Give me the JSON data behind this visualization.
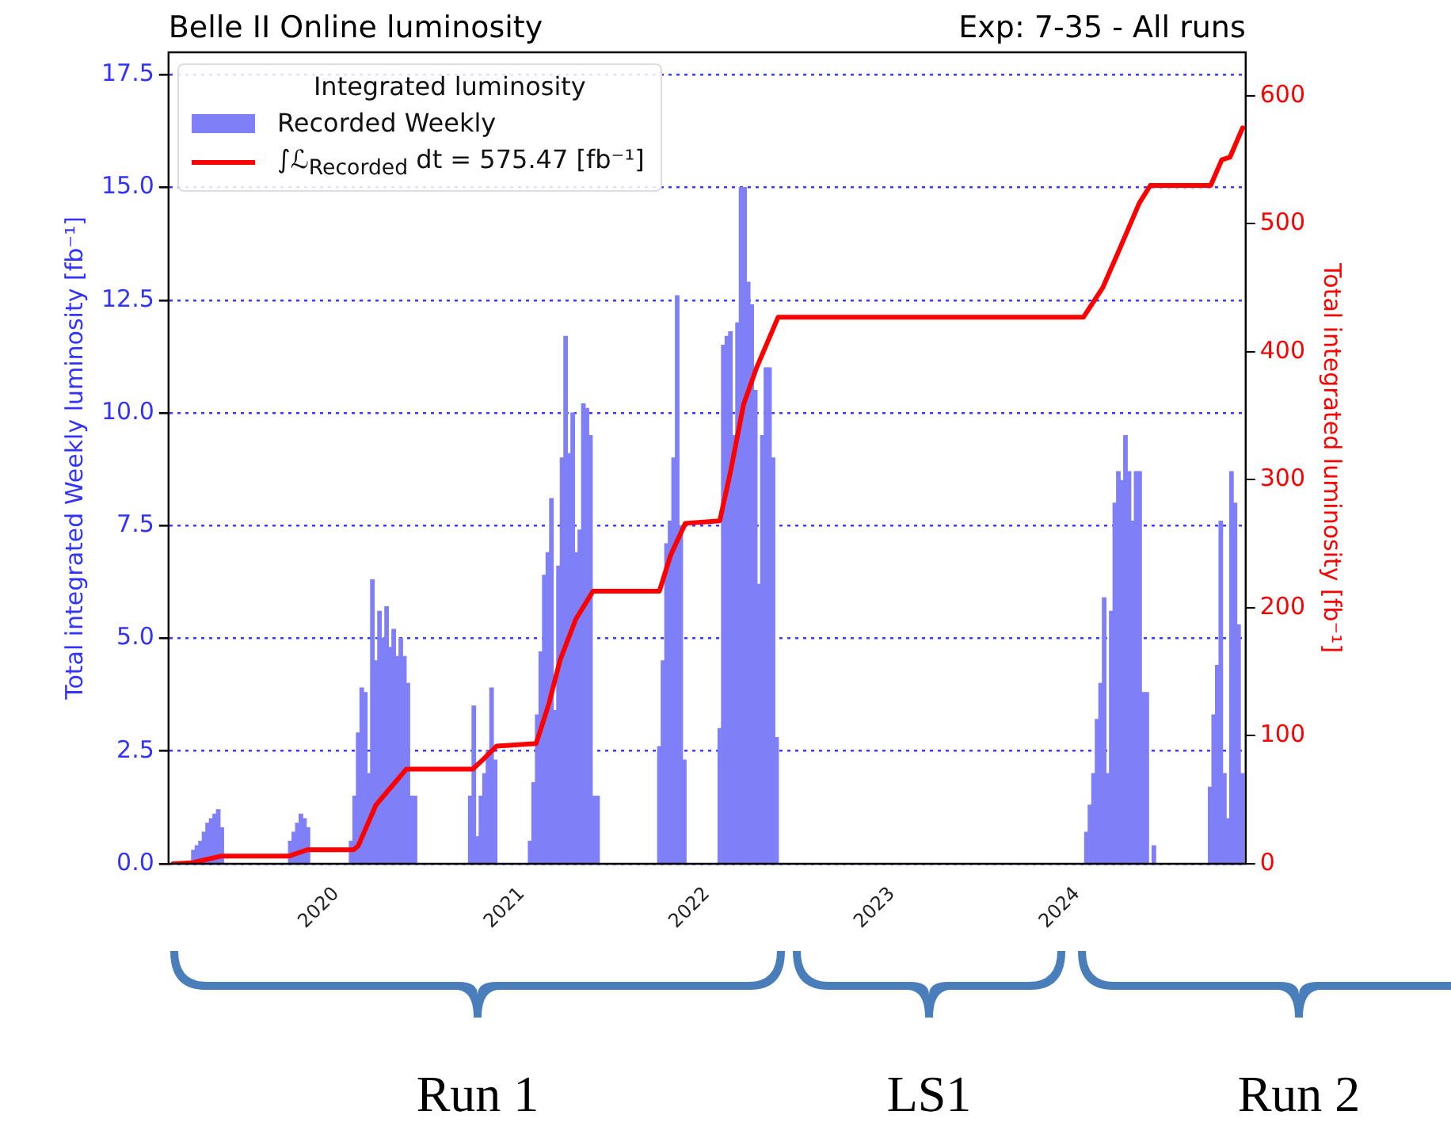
{
  "chart_data": {
    "type": "bar",
    "title": "Belle II Online luminosity",
    "subtitle": "Exp: 7-35 - All runs",
    "ylabel": "Total integrated Weekly luminosity [fb⁻¹]",
    "y2label": "Total integrated luminosity [fb⁻¹]",
    "legend_title": "Integrated luminosity",
    "legend": "top left",
    "grid": "y",
    "xlim": [
      "2019-03-10",
      "2025-01-01"
    ],
    "xticks": [
      "2020",
      "2021",
      "2022",
      "2023",
      "2024"
    ],
    "ylim": [
      0,
      18
    ],
    "yticks": [
      {
        "value": 0,
        "label": "0.0"
      },
      {
        "value": 2.5,
        "label": "2.5"
      },
      {
        "value": 5,
        "label": "5.0"
      },
      {
        "value": 7.5,
        "label": "7.5"
      },
      {
        "value": 10,
        "label": "10.0"
      },
      {
        "value": 12.5,
        "label": "12.5"
      },
      {
        "value": 15,
        "label": "15.0"
      },
      {
        "value": 17.5,
        "label": "17.5"
      }
    ],
    "y2lim": [
      0,
      634
    ],
    "y2ticks": [
      0,
      100,
      200,
      300,
      400,
      500,
      600
    ],
    "series": [
      {
        "name": "Recorded Weekly",
        "type": "bar",
        "color": "#7f7ff7",
        "x": [
          "2019-04-28",
          "2019-05-05",
          "2019-05-12",
          "2019-05-19",
          "2019-05-26",
          "2019-06-02",
          "2019-06-09",
          "2019-06-16",
          "2019-06-23",
          "2019-11-05",
          "2019-11-12",
          "2019-11-19",
          "2019-11-26",
          "2019-12-03",
          "2019-12-10",
          "2020-03-04",
          "2020-03-11",
          "2020-03-18",
          "2020-03-25",
          "2020-04-01",
          "2020-04-08",
          "2020-04-15",
          "2020-04-22",
          "2020-04-29",
          "2020-05-06",
          "2020-05-13",
          "2020-05-20",
          "2020-05-27",
          "2020-06-03",
          "2020-06-10",
          "2020-06-17",
          "2020-06-24",
          "2020-07-01",
          "2020-07-08",
          "2020-10-25",
          "2020-11-01",
          "2020-11-08",
          "2020-11-15",
          "2020-11-22",
          "2020-11-29",
          "2020-12-06",
          "2020-12-13",
          "2021-02-20",
          "2021-02-27",
          "2021-03-06",
          "2021-03-13",
          "2021-03-20",
          "2021-03-27",
          "2021-04-03",
          "2021-04-10",
          "2021-04-17",
          "2021-04-24",
          "2021-05-01",
          "2021-05-08",
          "2021-05-15",
          "2021-05-22",
          "2021-05-29",
          "2021-06-05",
          "2021-06-12",
          "2021-06-19",
          "2021-06-26",
          "2021-07-03",
          "2021-11-02",
          "2021-11-09",
          "2021-11-16",
          "2021-11-23",
          "2021-11-30",
          "2021-12-07",
          "2021-12-14",
          "2021-12-21",
          "2022-03-01",
          "2022-03-08",
          "2022-03-15",
          "2022-03-22",
          "2022-03-29",
          "2022-04-05",
          "2022-04-12",
          "2022-04-19",
          "2022-04-26",
          "2022-05-03",
          "2022-05-10",
          "2022-05-17",
          "2022-05-24",
          "2022-05-31",
          "2022-06-07",
          "2022-06-14",
          "2022-06-21",
          "2024-02-22",
          "2024-02-29",
          "2024-03-07",
          "2024-03-14",
          "2024-03-21",
          "2024-03-28",
          "2024-04-04",
          "2024-04-11",
          "2024-04-18",
          "2024-04-25",
          "2024-05-02",
          "2024-05-09",
          "2024-05-16",
          "2024-05-23",
          "2024-05-30",
          "2024-06-06",
          "2024-06-13",
          "2024-06-20",
          "2024-07-04",
          "2024-10-23",
          "2024-10-30",
          "2024-11-06",
          "2024-11-13",
          "2024-11-20",
          "2024-11-27",
          "2024-12-04",
          "2024-12-11",
          "2024-12-18",
          "2024-12-25"
        ],
        "values": [
          0.3,
          0.4,
          0.5,
          0.7,
          0.9,
          1.0,
          1.1,
          1.2,
          0.8,
          0.5,
          0.7,
          0.9,
          1.1,
          1.0,
          0.8,
          0.5,
          1.5,
          2.9,
          3.9,
          3.8,
          2.0,
          6.3,
          4.5,
          5.6,
          5.0,
          5.7,
          4.8,
          5.2,
          4.6,
          5.0,
          4.6,
          4.0,
          1.5,
          1.5,
          1.5,
          3.5,
          0.6,
          1.5,
          2.0,
          2.5,
          3.9,
          2.3,
          0.5,
          1.8,
          3.3,
          4.7,
          6.4,
          6.9,
          8.1,
          3.4,
          6.6,
          9.0,
          11.7,
          9.1,
          10.0,
          6.9,
          7.4,
          10.2,
          10.1,
          9.5,
          1.5,
          1.5,
          2.6,
          4.5,
          7.1,
          7.6,
          9.0,
          12.6,
          7.5,
          2.3,
          3.0,
          11.5,
          11.7,
          11.8,
          9.5,
          12.0,
          15.0,
          15.0,
          12.9,
          12.4,
          10.5,
          6.2,
          9.5,
          11.0,
          11.0,
          9.0,
          2.8,
          0.7,
          1.3,
          2.0,
          3.2,
          4.0,
          5.9,
          2.0,
          5.6,
          8.0,
          8.7,
          8.5,
          9.5,
          8.7,
          7.6,
          8.7,
          8.7,
          3.8,
          3.8,
          0.4,
          1.7,
          3.3,
          4.4,
          7.6,
          2.0,
          1.0,
          8.7,
          8.0,
          5.3,
          2.0
        ]
      },
      {
        "name": "∫ℒ$_{Recorded}$ dt = 575.47 [fb⁻¹]",
        "type": "line",
        "axis": "y2",
        "color": "#ff0000",
        "x": [
          "2019-03-19",
          "2019-04-28",
          "2019-06-21",
          "2019-11-02",
          "2019-12-09",
          "2020-03-09",
          "2020-03-18",
          "2020-04-22",
          "2020-06-21",
          "2020-10-30",
          "2020-11-18",
          "2020-12-16",
          "2021-03-04",
          "2021-03-29",
          "2021-04-20",
          "2021-05-21",
          "2021-06-24",
          "2021-11-02",
          "2021-11-24",
          "2021-12-23",
          "2022-03-01",
          "2022-03-23",
          "2022-04-17",
          "2022-05-12",
          "2022-06-24",
          "2024-02-16",
          "2024-03-25",
          "2024-04-26",
          "2024-06-05",
          "2024-06-27",
          "2024-10-24",
          "2024-11-15",
          "2024-12-01",
          "2024-12-26"
        ],
        "values": [
          0,
          1,
          6,
          6,
          11,
          11,
          14,
          46,
          74,
          74,
          81,
          92,
          94,
          125,
          159,
          191,
          213,
          213,
          241,
          266,
          268,
          308,
          359,
          387,
          427,
          427,
          450,
          479,
          516,
          530,
          530,
          550,
          552,
          575
        ]
      }
    ],
    "annotations": [
      "Run 1",
      "LS1",
      "Run 2"
    ]
  }
}
